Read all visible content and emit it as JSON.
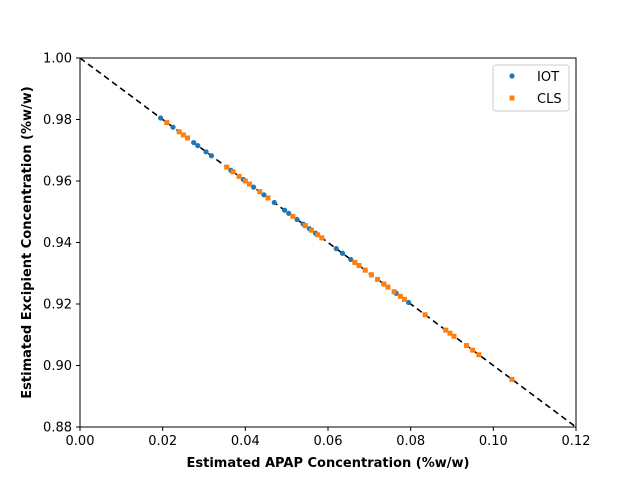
{
  "chart_data": {
    "type": "scatter",
    "xlabel": "Estimated APAP Concentration (%w/w)",
    "ylabel": "Estimated Excipient Concentration (%w/w)",
    "xlim": [
      0.0,
      0.12
    ],
    "ylim": [
      0.88,
      1.0
    ],
    "x_ticks": [
      "0.00",
      "0.02",
      "0.04",
      "0.06",
      "0.08",
      "0.10",
      "0.12"
    ],
    "y_ticks": [
      "0.88",
      "0.90",
      "0.92",
      "0.94",
      "0.96",
      "0.98",
      "1.00"
    ],
    "grid": false,
    "legend_position": "top-right",
    "reference_line": {
      "style": "dashed",
      "color": "#000000",
      "x": [
        0.0,
        0.12
      ],
      "y": [
        1.0,
        0.88
      ]
    },
    "series": [
      {
        "name": "IOT",
        "color": "#1f77b4",
        "marker": "circle",
        "x": [
          0.0195,
          0.0225,
          0.0275,
          0.0285,
          0.0305,
          0.0318,
          0.0365,
          0.0395,
          0.042,
          0.0445,
          0.047,
          0.0495,
          0.0505,
          0.0525,
          0.054,
          0.0555,
          0.057,
          0.062,
          0.0635,
          0.0655,
          0.0665,
          0.0675,
          0.0705,
          0.0735,
          0.0765,
          0.0795
        ],
        "y": [
          0.9805,
          0.9775,
          0.9725,
          0.9715,
          0.9695,
          0.9682,
          0.9635,
          0.9605,
          0.958,
          0.9555,
          0.953,
          0.9505,
          0.9495,
          0.9475,
          0.946,
          0.9445,
          0.943,
          0.938,
          0.9365,
          0.9345,
          0.9335,
          0.9325,
          0.9295,
          0.9265,
          0.9235,
          0.9205
        ]
      },
      {
        "name": "CLS",
        "color": "#ff7f0e",
        "marker": "square",
        "x": [
          0.021,
          0.024,
          0.025,
          0.026,
          0.0355,
          0.037,
          0.0385,
          0.04,
          0.041,
          0.0435,
          0.0455,
          0.0515,
          0.0545,
          0.056,
          0.0575,
          0.0585,
          0.0665,
          0.0675,
          0.069,
          0.0705,
          0.072,
          0.0735,
          0.0745,
          0.076,
          0.0775,
          0.0785,
          0.0835,
          0.0885,
          0.0895,
          0.0905,
          0.0935,
          0.095,
          0.0965,
          0.1045
        ],
        "y": [
          0.979,
          0.976,
          0.975,
          0.974,
          0.9645,
          0.963,
          0.9615,
          0.96,
          0.959,
          0.9565,
          0.9545,
          0.9485,
          0.9455,
          0.944,
          0.9425,
          0.9415,
          0.9335,
          0.9325,
          0.931,
          0.9295,
          0.928,
          0.9265,
          0.9255,
          0.924,
          0.9225,
          0.9215,
          0.9165,
          0.9115,
          0.9105,
          0.9095,
          0.9065,
          0.905,
          0.9035,
          0.8955
        ]
      }
    ]
  }
}
